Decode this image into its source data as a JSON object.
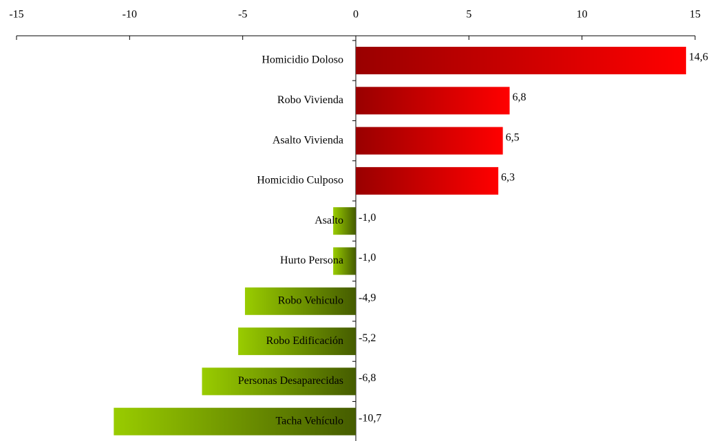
{
  "chart_data": {
    "type": "bar",
    "orientation": "horizontal",
    "categories": [
      "Homicidio Doloso",
      "Robo Vivienda",
      "Asalto Vivienda",
      "Homicidio Culposo",
      "Asalto",
      "Hurto Persona",
      "Robo Vehiculo",
      "Robo Edificación",
      "Personas Desaparecidas",
      "Tacha Vehículo"
    ],
    "values": [
      14.6,
      6.8,
      6.5,
      6.3,
      -1.0,
      -1.0,
      -4.9,
      -5.2,
      -6.8,
      -10.7
    ],
    "value_labels": [
      "14,6",
      "6,8",
      "6,5",
      "6,3",
      "-1,0",
      "-1,0",
      "-4,9",
      "-5,2",
      "-6,8",
      "-10,7"
    ],
    "color_positive": "#ff0000",
    "color_negative": "#99cc00",
    "xlim": [
      -15,
      15
    ],
    "xticks": [
      -15,
      -10,
      -5,
      0,
      5,
      10,
      15
    ],
    "grid": false
  }
}
